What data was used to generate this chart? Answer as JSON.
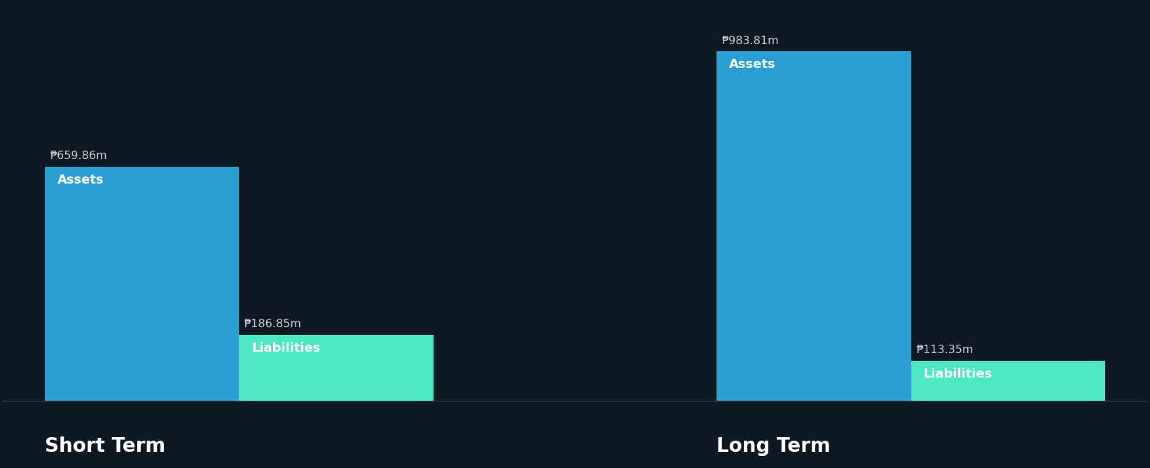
{
  "background_color": "#0f1923",
  "groups": [
    {
      "label": "Short Term",
      "bars": [
        {
          "name": "Assets",
          "value": 659.86,
          "color": "#2b9fd4",
          "label_value": "₱659.86m"
        },
        {
          "name": "Liabilities",
          "value": 186.85,
          "color": "#4de8c2",
          "label_value": "₱186.85m"
        }
      ]
    },
    {
      "label": "Long Term",
      "bars": [
        {
          "name": "Assets",
          "value": 983.81,
          "color": "#2b9fd4",
          "label_value": "₱983.81m"
        },
        {
          "name": "Liabilities",
          "value": 113.35,
          "color": "#4de8c2",
          "label_value": "₱113.35m"
        }
      ]
    }
  ],
  "value_label_color": "#cccccc",
  "inside_label_color": "#ffffff",
  "group_label_color": "#ffffff",
  "value_fontsize": 11.5,
  "inside_fontsize": 13,
  "group_label_fontsize": 20,
  "max_value": 1000
}
